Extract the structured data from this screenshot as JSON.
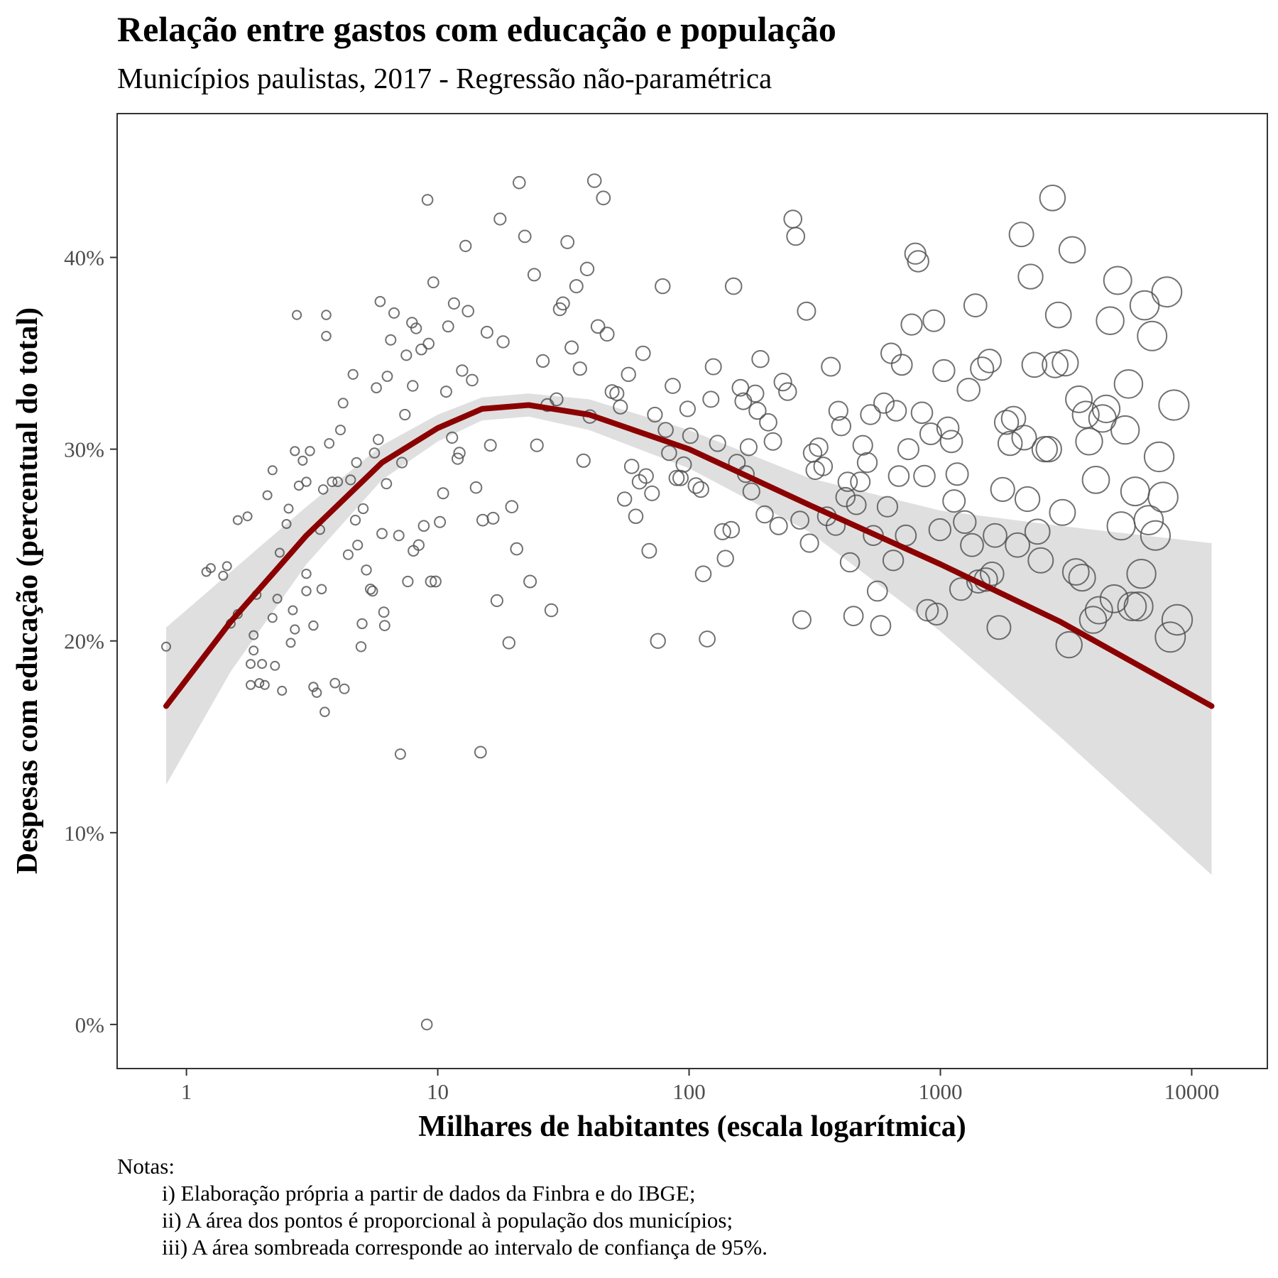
{
  "chart_data": {
    "type": "scatter",
    "title": "Relação entre gastos com educação e população",
    "subtitle": "Municípios paulistas, 2017 - Regressão não-paramétrica",
    "xlabel": "Milhares de habitantes (escala logarítmica)",
    "ylabel": "Despesas com educação (percentual do total)",
    "x_scale": "log10",
    "xlim": [
      0.53,
      20000
    ],
    "ylim": [
      -0.023,
      0.475
    ],
    "x_ticks": [
      {
        "value": 1,
        "label": "1"
      },
      {
        "value": 10,
        "label": "10"
      },
      {
        "value": 100,
        "label": "100"
      },
      {
        "value": 1000,
        "label": "1000"
      },
      {
        "value": 10000,
        "label": "10000"
      }
    ],
    "y_ticks": [
      {
        "value": 0,
        "label": "0%"
      },
      {
        "value": 0.1,
        "label": "10%"
      },
      {
        "value": 0.2,
        "label": "20%"
      },
      {
        "value": 0.3,
        "label": "30%"
      },
      {
        "value": 0.4,
        "label": "40%"
      }
    ],
    "grid": false,
    "legend": "none",
    "point_area": "proportional to population",
    "colors": {
      "points": "#4d4d4d",
      "smooth_line": "#8b0000",
      "confidence_band": "#d9d9d9",
      "panel_border": "#333333"
    },
    "smooth": {
      "x": [
        0.83,
        1.5,
        3,
        6,
        10,
        15,
        23,
        40,
        100,
        300,
        1000,
        3000,
        12000
      ],
      "fit": [
        0.166,
        0.21,
        0.255,
        0.293,
        0.311,
        0.321,
        0.323,
        0.318,
        0.3,
        0.271,
        0.24,
        0.21,
        0.166
      ],
      "lower": [
        0.125,
        0.184,
        0.24,
        0.284,
        0.304,
        0.315,
        0.317,
        0.31,
        0.29,
        0.257,
        0.205,
        0.15,
        0.078
      ],
      "upper": [
        0.207,
        0.236,
        0.27,
        0.302,
        0.318,
        0.327,
        0.329,
        0.326,
        0.31,
        0.285,
        0.268,
        0.26,
        0.251
      ]
    },
    "points": [
      [
        0.83,
        0.197
      ],
      [
        1.2,
        0.236
      ],
      [
        1.25,
        0.238
      ],
      [
        1.4,
        0.234
      ],
      [
        1.45,
        0.239
      ],
      [
        1.5,
        0.209
      ],
      [
        1.6,
        0.214
      ],
      [
        1.6,
        0.263
      ],
      [
        1.75,
        0.265
      ],
      [
        1.8,
        0.188
      ],
      [
        1.8,
        0.177
      ],
      [
        1.85,
        0.195
      ],
      [
        1.85,
        0.203
      ],
      [
        1.9,
        0.224
      ],
      [
        1.95,
        0.178
      ],
      [
        2.0,
        0.188
      ],
      [
        2.05,
        0.177
      ],
      [
        2.1,
        0.276
      ],
      [
        2.2,
        0.212
      ],
      [
        2.2,
        0.289
      ],
      [
        2.25,
        0.187
      ],
      [
        2.3,
        0.222
      ],
      [
        2.35,
        0.246
      ],
      [
        2.4,
        0.174
      ],
      [
        2.5,
        0.261
      ],
      [
        2.55,
        0.269
      ],
      [
        2.6,
        0.199
      ],
      [
        2.65,
        0.216
      ],
      [
        2.7,
        0.206
      ],
      [
        2.7,
        0.299
      ],
      [
        2.75,
        0.37
      ],
      [
        2.8,
        0.281
      ],
      [
        2.9,
        0.294
      ],
      [
        3.0,
        0.283
      ],
      [
        3.0,
        0.235
      ],
      [
        3.0,
        0.226
      ],
      [
        3.1,
        0.299
      ],
      [
        3.2,
        0.208
      ],
      [
        3.2,
        0.176
      ],
      [
        3.3,
        0.173
      ],
      [
        3.4,
        0.258
      ],
      [
        3.45,
        0.227
      ],
      [
        3.5,
        0.279
      ],
      [
        3.55,
        0.163
      ],
      [
        3.6,
        0.359
      ],
      [
        3.6,
        0.37
      ],
      [
        3.7,
        0.303
      ],
      [
        3.8,
        0.283
      ],
      [
        3.9,
        0.178
      ],
      [
        4.0,
        0.283
      ],
      [
        4.1,
        0.31
      ],
      [
        4.2,
        0.324
      ],
      [
        4.25,
        0.175
      ],
      [
        4.4,
        0.245
      ],
      [
        4.5,
        0.284
      ],
      [
        4.6,
        0.339
      ],
      [
        4.7,
        0.263
      ],
      [
        4.75,
        0.293
      ],
      [
        4.8,
        0.25
      ],
      [
        4.95,
        0.197
      ],
      [
        5.0,
        0.209
      ],
      [
        5.05,
        0.269
      ],
      [
        5.2,
        0.237
      ],
      [
        5.4,
        0.227
      ],
      [
        5.5,
        0.226
      ],
      [
        5.6,
        0.298
      ],
      [
        5.7,
        0.332
      ],
      [
        5.8,
        0.305
      ],
      [
        5.9,
        0.377
      ],
      [
        6.0,
        0.256
      ],
      [
        6.1,
        0.215
      ],
      [
        6.15,
        0.208
      ],
      [
        6.25,
        0.282
      ],
      [
        6.3,
        0.338
      ],
      [
        6.5,
        0.357
      ],
      [
        6.7,
        0.371
      ],
      [
        7.0,
        0.255
      ],
      [
        7.1,
        0.141
      ],
      [
        7.2,
        0.293
      ],
      [
        7.4,
        0.318
      ],
      [
        7.5,
        0.349
      ],
      [
        7.6,
        0.231
      ],
      [
        7.9,
        0.366
      ],
      [
        7.95,
        0.333
      ],
      [
        8.0,
        0.247
      ],
      [
        8.2,
        0.363
      ],
      [
        8.4,
        0.25
      ],
      [
        8.6,
        0.352
      ],
      [
        8.8,
        0.26
      ],
      [
        9.05,
        0.0
      ],
      [
        9.1,
        0.43
      ],
      [
        9.2,
        0.355
      ],
      [
        9.4,
        0.231
      ],
      [
        9.6,
        0.387
      ],
      [
        9.8,
        0.231
      ],
      [
        10.2,
        0.262
      ],
      [
        10.5,
        0.277
      ],
      [
        10.8,
        0.33
      ],
      [
        11.0,
        0.364
      ],
      [
        11.4,
        0.306
      ],
      [
        11.6,
        0.376
      ],
      [
        12.0,
        0.295
      ],
      [
        12.2,
        0.298
      ],
      [
        12.5,
        0.341
      ],
      [
        12.9,
        0.406
      ],
      [
        13.2,
        0.372
      ],
      [
        13.7,
        0.336
      ],
      [
        14.2,
        0.28
      ],
      [
        14.8,
        0.142
      ],
      [
        15.1,
        0.263
      ],
      [
        15.7,
        0.361
      ],
      [
        16.2,
        0.302
      ],
      [
        16.6,
        0.264
      ],
      [
        17.2,
        0.221
      ],
      [
        17.7,
        0.42
      ],
      [
        18.2,
        0.356
      ],
      [
        19.2,
        0.199
      ],
      [
        19.7,
        0.27
      ],
      [
        20.6,
        0.248
      ],
      [
        21.1,
        0.439
      ],
      [
        22.2,
        0.411
      ],
      [
        23.3,
        0.231
      ],
      [
        24.2,
        0.391
      ],
      [
        24.8,
        0.302
      ],
      [
        26.2,
        0.346
      ],
      [
        27.3,
        0.323
      ],
      [
        28.3,
        0.216
      ],
      [
        29.7,
        0.326
      ],
      [
        30.6,
        0.373
      ],
      [
        31.5,
        0.376
      ],
      [
        32.8,
        0.408
      ],
      [
        34.1,
        0.353
      ],
      [
        35.6,
        0.385
      ],
      [
        36.8,
        0.342
      ],
      [
        38.0,
        0.294
      ],
      [
        39.3,
        0.394
      ],
      [
        40.3,
        0.317
      ],
      [
        42.0,
        0.44
      ],
      [
        43.4,
        0.364
      ],
      [
        45.6,
        0.431
      ],
      [
        47.2,
        0.36
      ],
      [
        49.4,
        0.33
      ],
      [
        51.6,
        0.329
      ],
      [
        53.3,
        0.322
      ],
      [
        55.4,
        0.274
      ],
      [
        57.4,
        0.339
      ],
      [
        59.1,
        0.291
      ],
      [
        61.4,
        0.265
      ],
      [
        63.5,
        0.283
      ],
      [
        65.6,
        0.35
      ],
      [
        67.4,
        0.286
      ],
      [
        69.4,
        0.247
      ],
      [
        71.2,
        0.277
      ],
      [
        73.1,
        0.318
      ],
      [
        75.2,
        0.2
      ],
      [
        78.5,
        0.385
      ],
      [
        80.7,
        0.31
      ],
      [
        83.3,
        0.298
      ],
      [
        86.1,
        0.333
      ],
      [
        89.2,
        0.285
      ],
      [
        92.5,
        0.285
      ],
      [
        95.2,
        0.292
      ],
      [
        98.6,
        0.321
      ],
      [
        101.2,
        0.307
      ],
      [
        106.5,
        0.281
      ],
      [
        111.4,
        0.279
      ],
      [
        113.9,
        0.235
      ],
      [
        118.1,
        0.201
      ],
      [
        122.2,
        0.326
      ],
      [
        124.9,
        0.343
      ],
      [
        129.9,
        0.303
      ],
      [
        136.0,
        0.257
      ],
      [
        139.5,
        0.243
      ],
      [
        147.1,
        0.258
      ],
      [
        150.3,
        0.385
      ],
      [
        155.0,
        0.293
      ],
      [
        160.1,
        0.332
      ],
      [
        164.4,
        0.325
      ],
      [
        168.2,
        0.287
      ],
      [
        172.6,
        0.301
      ],
      [
        177.0,
        0.278
      ],
      [
        183.5,
        0.329
      ],
      [
        187.2,
        0.32
      ],
      [
        192.2,
        0.347
      ],
      [
        199.9,
        0.266
      ],
      [
        206.5,
        0.314
      ],
      [
        215.6,
        0.304
      ],
      [
        227.1,
        0.26
      ],
      [
        236.1,
        0.335
      ],
      [
        246.6,
        0.33
      ],
      [
        258.8,
        0.42
      ],
      [
        265.7,
        0.411
      ],
      [
        276.0,
        0.263
      ],
      [
        281.1,
        0.211
      ],
      [
        293.3,
        0.372
      ],
      [
        301.4,
        0.251
      ],
      [
        310.1,
        0.298
      ],
      [
        317.7,
        0.289
      ],
      [
        327.7,
        0.301
      ],
      [
        341.5,
        0.291
      ],
      [
        353.5,
        0.265
      ],
      [
        366.5,
        0.343
      ],
      [
        383.2,
        0.26
      ],
      [
        392.6,
        0.32
      ],
      [
        403.0,
        0.312
      ],
      [
        419.2,
        0.275
      ],
      [
        427.6,
        0.283
      ],
      [
        436.7,
        0.241
      ],
      [
        451.0,
        0.213
      ],
      [
        462.9,
        0.271
      ],
      [
        480.1,
        0.283
      ],
      [
        491.3,
        0.302
      ],
      [
        511.6,
        0.293
      ],
      [
        527.0,
        0.318
      ],
      [
        541.0,
        0.255
      ],
      [
        561.7,
        0.226
      ],
      [
        578.7,
        0.208
      ],
      [
        596.1,
        0.324
      ],
      [
        615.4,
        0.27
      ],
      [
        636.9,
        0.35
      ],
      [
        649.3,
        0.242
      ],
      [
        666.3,
        0.32
      ],
      [
        683.1,
        0.286
      ],
      [
        702.3,
        0.344
      ],
      [
        728.4,
        0.255
      ],
      [
        745.8,
        0.3
      ],
      [
        768.4,
        0.365
      ],
      [
        794.8,
        0.402
      ],
      [
        815.8,
        0.398
      ],
      [
        844.5,
        0.319
      ],
      [
        863.8,
        0.286
      ],
      [
        888.9,
        0.216
      ],
      [
        915.5,
        0.308
      ],
      [
        941.8,
        0.367
      ],
      [
        966.2,
        0.214
      ],
      [
        995.4,
        0.258
      ],
      [
        1032.7,
        0.341
      ],
      [
        1071.2,
        0.311
      ],
      [
        1106.3,
        0.304
      ],
      [
        1133.3,
        0.273
      ],
      [
        1165.8,
        0.287
      ],
      [
        1207.7,
        0.227
      ],
      [
        1250.4,
        0.262
      ],
      [
        1294.5,
        0.331
      ],
      [
        1336.1,
        0.25
      ],
      [
        1378.6,
        0.375
      ],
      [
        1415.8,
        0.231
      ],
      [
        1465.1,
        0.342
      ],
      [
        1518.0,
        0.232
      ],
      [
        1567.2,
        0.346
      ],
      [
        1605.7,
        0.235
      ],
      [
        1650.0,
        0.255
      ],
      [
        1709.8,
        0.207
      ],
      [
        1769.5,
        0.279
      ],
      [
        1832.8,
        0.314
      ],
      [
        1894.8,
        0.303
      ],
      [
        1955.1,
        0.316
      ],
      [
        2026.8,
        0.25
      ],
      [
        2100.9,
        0.412
      ],
      [
        2155.4,
        0.306
      ],
      [
        2220.8,
        0.274
      ],
      [
        2284.4,
        0.39
      ],
      [
        2365.9,
        0.344
      ],
      [
        2433.6,
        0.257
      ],
      [
        2507.1,
        0.242
      ],
      [
        2600.9,
        0.3
      ],
      [
        2699.8,
        0.3
      ],
      [
        2793.7,
        0.431
      ],
      [
        2861.5,
        0.344
      ],
      [
        2947.9,
        0.37
      ],
      [
        3060.0,
        0.267
      ],
      [
        3141.4,
        0.345
      ],
      [
        3251.1,
        0.198
      ],
      [
        3345.4,
        0.404
      ],
      [
        3459.7,
        0.236
      ],
      [
        3557.7,
        0.326
      ],
      [
        3664.3,
        0.233
      ],
      [
        3788.3,
        0.318
      ],
      [
        3908.5,
        0.304
      ],
      [
        4050.9,
        0.211
      ],
      [
        4155.6,
        0.284
      ],
      [
        4276.0,
        0.216
      ],
      [
        4415.4,
        0.316
      ],
      [
        4567.9,
        0.321
      ],
      [
        4738.1,
        0.367
      ],
      [
        4914.5,
        0.222
      ],
      [
        5074.8,
        0.388
      ],
      [
        5238.8,
        0.26
      ],
      [
        5433.4,
        0.31
      ],
      [
        5602.9,
        0.334
      ],
      [
        5789.1,
        0.218
      ],
      [
        5954.7,
        0.278
      ],
      [
        6144.8,
        0.218
      ],
      [
        6308.4,
        0.235
      ],
      [
        6494.8,
        0.375
      ],
      [
        6738.4,
        0.263
      ],
      [
        6956.2,
        0.359
      ],
      [
        7175.5,
        0.255
      ],
      [
        7420.1,
        0.296
      ],
      [
        7689.3,
        0.275
      ],
      [
        7960.8,
        0.382
      ],
      [
        8219.4,
        0.202
      ],
      [
        8496.6,
        0.323
      ],
      [
        8753.1,
        0.211
      ]
    ]
  },
  "notes": {
    "heading": "Notas:",
    "lines": [
      "i) Elaboração própria a partir de dados da Finbra e do IBGE;",
      "ii) A área dos pontos é proporcional à população dos municípios;",
      "iii) A área sombreada corresponde ao intervalo de confiança de 95%."
    ]
  }
}
